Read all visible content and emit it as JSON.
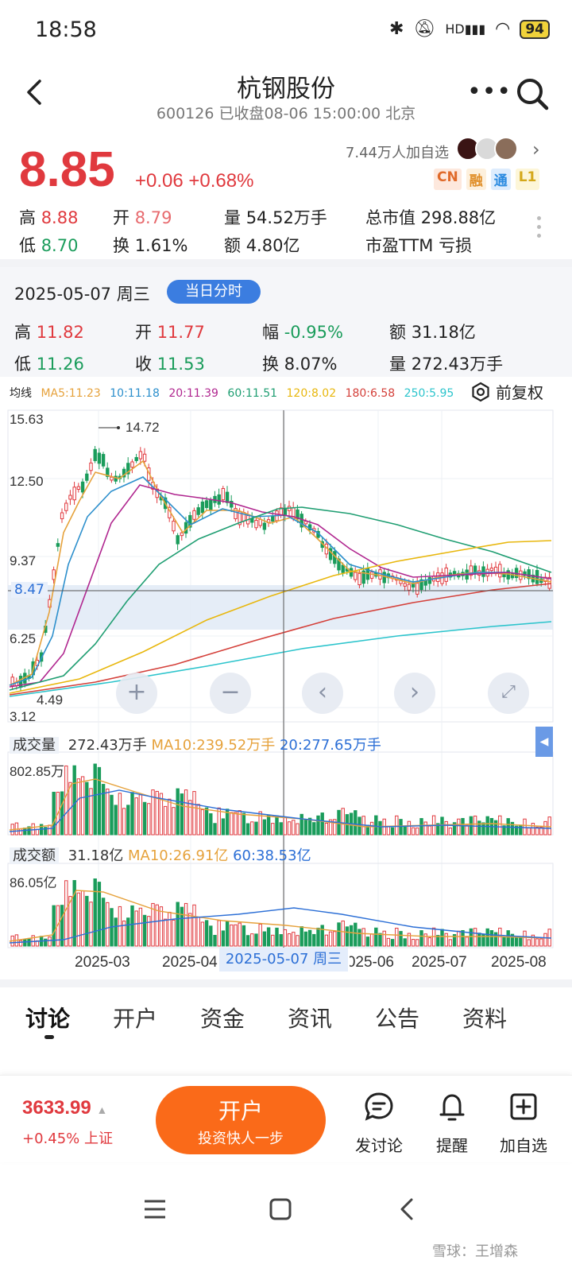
{
  "status_bar": {
    "time": "18:58",
    "battery": "94",
    "net": "HD"
  },
  "header": {
    "title": "杭钢股份",
    "subtitle": "600126 已收盘08-06 15:00:00 北京"
  },
  "quote": {
    "price": "8.85",
    "change": "+0.06 +0.68%",
    "watchers": "7.44万人加自选",
    "tags": [
      "CN",
      "融",
      "通",
      "L1"
    ],
    "high_lbl": "高",
    "high": "8.88",
    "open_lbl": "开",
    "open": "8.79",
    "vol_lbl": "量",
    "vol": "54.52万手",
    "mcap_lbl": "总市值",
    "mcap": "298.88亿",
    "low_lbl": "低",
    "low": "8.70",
    "turn_lbl": "换",
    "turn": "1.61%",
    "amt_lbl": "额",
    "amt": "4.80亿",
    "pe_lbl": "市盈TTM",
    "pe": "亏损"
  },
  "day_panel": {
    "date": "2025-05-07 周三",
    "button": "当日分时",
    "high_lbl": "高",
    "high": "11.82",
    "open_lbl": "开",
    "open": "11.77",
    "amp_lbl": "幅",
    "amp": "-0.95%",
    "amt_lbl": "额",
    "amt": "31.18亿",
    "low_lbl": "低",
    "low": "11.26",
    "close_lbl": "收",
    "close": "11.53",
    "turn_lbl": "换",
    "turn": "8.07%",
    "vol_lbl": "量",
    "vol": "272.43万手"
  },
  "ma_legend": {
    "label": "均线",
    "items": [
      {
        "text": "MA5:11.23",
        "color": "#e6a23c"
      },
      {
        "text": "10:11.18",
        "color": "#2c8fcc"
      },
      {
        "text": "20:11.39",
        "color": "#b0268f"
      },
      {
        "text": "60:11.51",
        "color": "#1f9e72"
      },
      {
        "text": "120:8.02",
        "color": "#e8b70d"
      },
      {
        "text": "180:6.58",
        "color": "#d4403a"
      },
      {
        "text": "250:5.95",
        "color": "#2cc4cc"
      }
    ],
    "fuquan": "前复权"
  },
  "price_axis": {
    "ticks": [
      "15.63",
      "12.50",
      "9.37",
      "6.25",
      "3.12"
    ],
    "max_label": "14.72",
    "min_label": "4.49",
    "cursor_price": "8.47"
  },
  "volume": {
    "title": "成交量",
    "value": "272.43万手",
    "ma10": "MA10:239.52万手",
    "ma20": "20:277.65万手",
    "max": "802.85万"
  },
  "turnover": {
    "title": "成交额",
    "value": "31.18亿",
    "ma10": "MA10:26.91亿",
    "ma60": "60:38.53亿",
    "max": "86.05亿"
  },
  "dates": {
    "ticks": [
      "2025-03",
      "2025-04",
      "2025-06",
      "2025-07",
      "2025-08"
    ],
    "cursor": "2025-05-07 周三"
  },
  "tabs": [
    "讨论",
    "开户",
    "资金",
    "资讯",
    "公告",
    "资料"
  ],
  "bottom": {
    "index_value": "3633.99",
    "index_change": "+0.45% 上证",
    "open_btn": "开户",
    "open_sub": "投资快人一步",
    "actions": [
      "发讨论",
      "提醒",
      "加自选"
    ]
  },
  "watermark": "雪球：王增森",
  "colors": {
    "up": "#e0393e",
    "down": "#1a9c5b",
    "accent": "#3b7de0",
    "orange": "#fa6a19"
  }
}
